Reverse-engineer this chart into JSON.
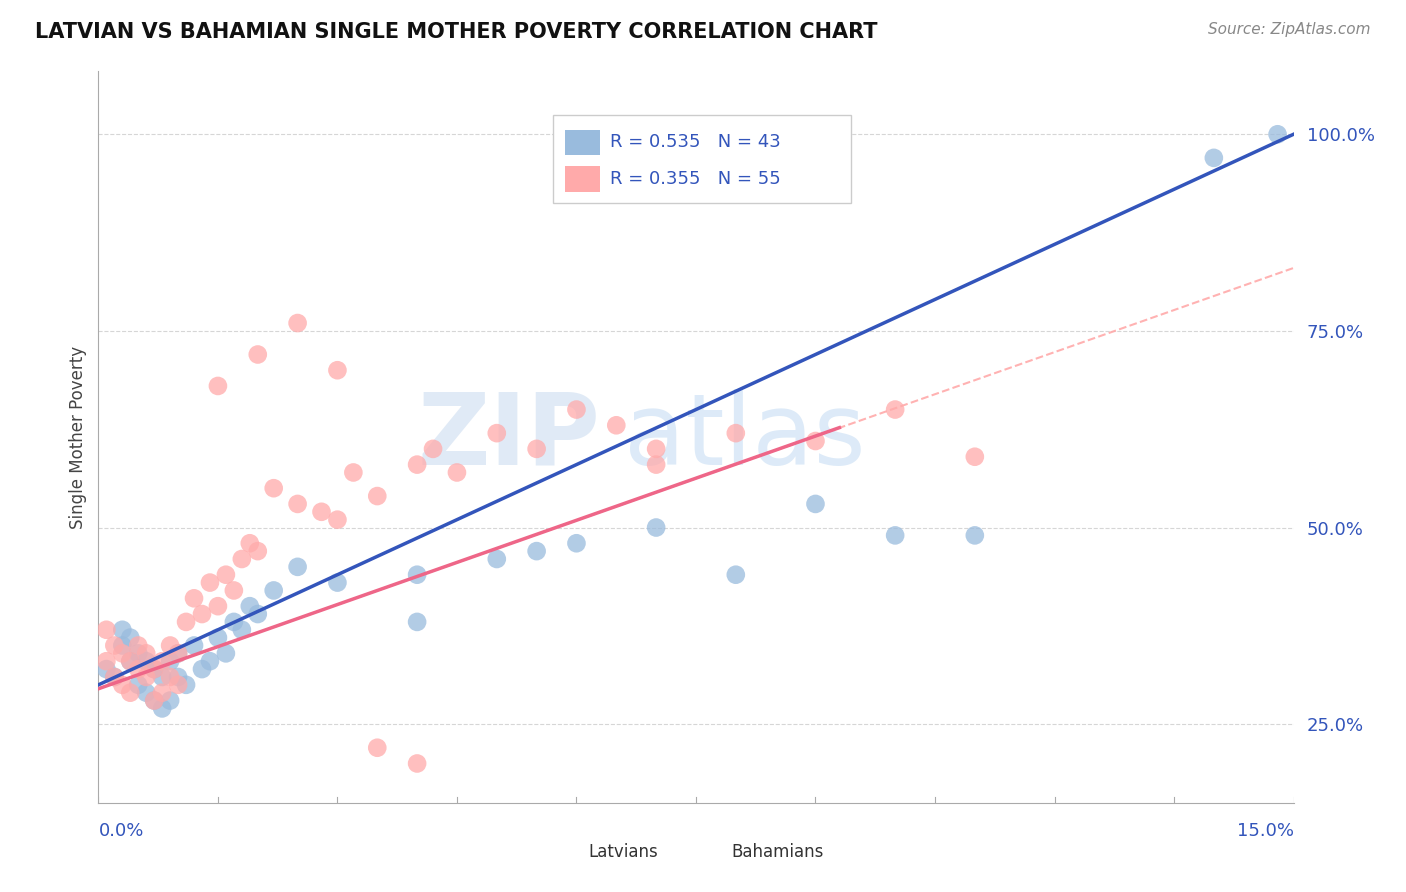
{
  "title": "LATVIAN VS BAHAMIAN SINGLE MOTHER POVERTY CORRELATION CHART",
  "source": "Source: ZipAtlas.com",
  "ylabel": "Single Mother Poverty",
  "y_tick_labels": [
    "25.0%",
    "50.0%",
    "75.0%",
    "100.0%"
  ],
  "y_tick_values": [
    0.25,
    0.5,
    0.75,
    1.0
  ],
  "xlim": [
    0.0,
    0.15
  ],
  "ylim": [
    0.15,
    1.08
  ],
  "legend_blue_label": "R = 0.535   N = 43",
  "legend_pink_label": "R = 0.355   N = 55",
  "blue_dot_color": "#99BBDD",
  "pink_dot_color": "#FFAAAA",
  "blue_line_color": "#3355BB",
  "pink_line_color": "#EE6688",
  "pink_dash_color": "#FFAAAA",
  "watermark_zip": "ZIP",
  "watermark_atlas": "atlas",
  "background_color": "#FFFFFF",
  "grid_color": "#CCCCCC",
  "blue_x": [
    0.001,
    0.002,
    0.003,
    0.003,
    0.004,
    0.004,
    0.005,
    0.005,
    0.006,
    0.006,
    0.007,
    0.007,
    0.008,
    0.008,
    0.009,
    0.009,
    0.01,
    0.01,
    0.011,
    0.012,
    0.013,
    0.014,
    0.015,
    0.016,
    0.017,
    0.018,
    0.019,
    0.02,
    0.022,
    0.025,
    0.03,
    0.04,
    0.04,
    0.05,
    0.055,
    0.06,
    0.07,
    0.08,
    0.09,
    0.1,
    0.11,
    0.14,
    0.148
  ],
  "blue_y": [
    0.32,
    0.31,
    0.35,
    0.37,
    0.33,
    0.36,
    0.3,
    0.34,
    0.29,
    0.33,
    0.28,
    0.32,
    0.27,
    0.31,
    0.28,
    0.33,
    0.31,
    0.34,
    0.3,
    0.35,
    0.32,
    0.33,
    0.36,
    0.34,
    0.38,
    0.37,
    0.4,
    0.39,
    0.42,
    0.45,
    0.43,
    0.38,
    0.44,
    0.46,
    0.47,
    0.48,
    0.5,
    0.44,
    0.53,
    0.49,
    0.49,
    0.97,
    1.0
  ],
  "pink_x": [
    0.001,
    0.001,
    0.002,
    0.002,
    0.003,
    0.003,
    0.004,
    0.004,
    0.005,
    0.005,
    0.006,
    0.006,
    0.007,
    0.007,
    0.008,
    0.008,
    0.009,
    0.009,
    0.01,
    0.01,
    0.011,
    0.012,
    0.013,
    0.014,
    0.015,
    0.016,
    0.017,
    0.018,
    0.019,
    0.02,
    0.022,
    0.025,
    0.028,
    0.03,
    0.032,
    0.035,
    0.04,
    0.042,
    0.045,
    0.05,
    0.055,
    0.06,
    0.065,
    0.07,
    0.07,
    0.08,
    0.09,
    0.1,
    0.11,
    0.015,
    0.02,
    0.025,
    0.03,
    0.035,
    0.04
  ],
  "pink_y": [
    0.33,
    0.37,
    0.31,
    0.35,
    0.3,
    0.34,
    0.29,
    0.33,
    0.32,
    0.35,
    0.31,
    0.34,
    0.28,
    0.32,
    0.29,
    0.33,
    0.31,
    0.35,
    0.3,
    0.34,
    0.38,
    0.41,
    0.39,
    0.43,
    0.4,
    0.44,
    0.42,
    0.46,
    0.48,
    0.47,
    0.55,
    0.53,
    0.52,
    0.51,
    0.57,
    0.54,
    0.58,
    0.6,
    0.57,
    0.62,
    0.6,
    0.65,
    0.63,
    0.6,
    0.58,
    0.62,
    0.61,
    0.65,
    0.59,
    0.68,
    0.72,
    0.76,
    0.7,
    0.22,
    0.2
  ]
}
